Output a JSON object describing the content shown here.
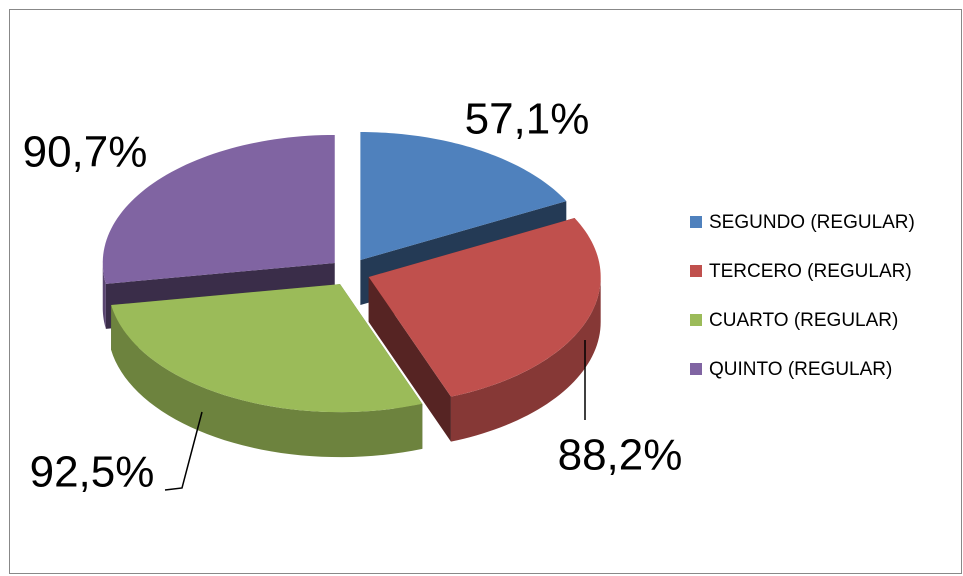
{
  "chart_data": {
    "type": "pie3d",
    "categories": [
      "SEGUNDO (REGULAR)",
      "TERCERO (REGULAR)",
      "CUARTO (REGULAR)",
      "QUINTO (REGULAR)"
    ],
    "values": [
      57.1,
      88.2,
      92.5,
      90.7
    ],
    "value_labels": [
      "57,1%",
      "88,2%",
      "92,5%",
      "90,7%"
    ],
    "colors": [
      "#4f81bd",
      "#c0504d",
      "#9bbb59",
      "#8064a2"
    ],
    "legend": "right"
  }
}
